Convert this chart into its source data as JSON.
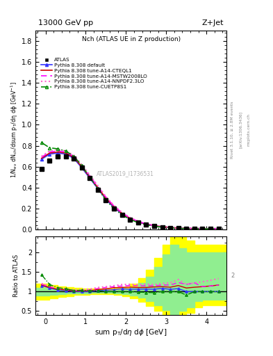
{
  "title_top": "13000 GeV pp",
  "title_right": "Z+Jet",
  "panel_title": "Nch (ATLAS UE in Z production)",
  "watermark": "ATLAS2019_I1736531",
  "atlas_x": [
    -0.1,
    0.1,
    0.3,
    0.5,
    0.7,
    0.9,
    1.1,
    1.3,
    1.5,
    1.7,
    1.9,
    2.1,
    2.3,
    2.5,
    2.7,
    2.9,
    3.1,
    3.3,
    3.5,
    3.7,
    3.9,
    4.1,
    4.3
  ],
  "atlas_y": [
    0.58,
    0.66,
    0.7,
    0.7,
    0.68,
    0.59,
    0.49,
    0.38,
    0.28,
    0.2,
    0.14,
    0.097,
    0.068,
    0.048,
    0.034,
    0.024,
    0.018,
    0.013,
    0.011,
    0.009,
    0.008,
    0.007,
    0.006
  ],
  "pythia_default_x": [
    -0.1,
    0.1,
    0.3,
    0.5,
    0.7,
    0.9,
    1.1,
    1.3,
    1.5,
    1.7,
    1.9,
    2.1,
    2.3,
    2.5,
    2.7,
    2.9,
    3.1,
    3.3,
    3.5,
    3.7,
    3.9,
    4.1,
    4.3
  ],
  "pythia_default_y": [
    0.67,
    0.72,
    0.73,
    0.72,
    0.68,
    0.59,
    0.49,
    0.39,
    0.29,
    0.21,
    0.15,
    0.103,
    0.072,
    0.051,
    0.036,
    0.026,
    0.019,
    0.014,
    0.011,
    0.009,
    0.008,
    0.007,
    0.006
  ],
  "cteql1_x": [
    -0.1,
    0.1,
    0.3,
    0.5,
    0.7,
    0.9,
    1.1,
    1.3,
    1.5,
    1.7,
    1.9,
    2.1,
    2.3,
    2.5,
    2.7,
    2.9,
    3.1,
    3.3,
    3.5,
    3.7,
    3.9,
    4.1,
    4.3
  ],
  "cteql1_y": [
    0.68,
    0.73,
    0.74,
    0.73,
    0.69,
    0.6,
    0.5,
    0.4,
    0.3,
    0.22,
    0.155,
    0.108,
    0.075,
    0.053,
    0.038,
    0.027,
    0.02,
    0.015,
    0.012,
    0.01,
    0.009,
    0.008,
    0.007
  ],
  "mstw_x": [
    -0.1,
    0.1,
    0.3,
    0.5,
    0.7,
    0.9,
    1.1,
    1.3,
    1.5,
    1.7,
    1.9,
    2.1,
    2.3,
    2.5,
    2.7,
    2.9,
    3.1,
    3.3,
    3.5,
    3.7,
    3.9,
    4.1,
    4.3
  ],
  "mstw_y": [
    0.69,
    0.74,
    0.75,
    0.74,
    0.7,
    0.61,
    0.51,
    0.41,
    0.31,
    0.225,
    0.16,
    0.112,
    0.078,
    0.055,
    0.039,
    0.028,
    0.021,
    0.016,
    0.013,
    0.011,
    0.009,
    0.008,
    0.007
  ],
  "nnpdf_x": [
    -0.1,
    0.1,
    0.3,
    0.5,
    0.7,
    0.9,
    1.1,
    1.3,
    1.5,
    1.7,
    1.9,
    2.1,
    2.3,
    2.5,
    2.7,
    2.9,
    3.1,
    3.3,
    3.5,
    3.7,
    3.9,
    4.1,
    4.3
  ],
  "nnpdf_y": [
    0.7,
    0.75,
    0.76,
    0.75,
    0.71,
    0.62,
    0.52,
    0.42,
    0.315,
    0.23,
    0.165,
    0.115,
    0.08,
    0.057,
    0.04,
    0.029,
    0.022,
    0.017,
    0.013,
    0.011,
    0.01,
    0.009,
    0.008
  ],
  "cuetp_x": [
    -0.1,
    0.1,
    0.3,
    0.5,
    0.7,
    0.9,
    1.1,
    1.3,
    1.5,
    1.7,
    1.9,
    2.1,
    2.3,
    2.5,
    2.7,
    2.9,
    3.1,
    3.3,
    3.5,
    3.7,
    3.9,
    4.1,
    4.3
  ],
  "cuetp_y": [
    0.83,
    0.78,
    0.77,
    0.75,
    0.7,
    0.61,
    0.5,
    0.39,
    0.28,
    0.2,
    0.14,
    0.097,
    0.067,
    0.047,
    0.033,
    0.024,
    0.018,
    0.013,
    0.01,
    0.009,
    0.008,
    0.007,
    0.006
  ],
  "ratio_x": [
    -0.1,
    0.1,
    0.3,
    0.5,
    0.7,
    0.9,
    1.1,
    1.3,
    1.5,
    1.7,
    1.9,
    2.1,
    2.3,
    2.5,
    2.7,
    2.9,
    3.1,
    3.3,
    3.5,
    3.7,
    3.9,
    4.1,
    4.3
  ],
  "ratio_default_y": [
    1.155,
    1.091,
    1.043,
    1.029,
    1.0,
    1.0,
    1.0,
    1.026,
    1.036,
    1.05,
    1.071,
    1.062,
    1.059,
    1.063,
    1.059,
    1.083,
    1.056,
    1.077,
    1.0,
    1.0,
    1.0,
    1.0,
    1.0
  ],
  "ratio_cteql1_y": [
    1.172,
    1.106,
    1.057,
    1.043,
    1.015,
    1.017,
    1.02,
    1.053,
    1.071,
    1.1,
    1.107,
    1.113,
    1.103,
    1.104,
    1.118,
    1.125,
    1.111,
    1.154,
    1.091,
    1.111,
    1.125,
    1.143,
    1.167
  ],
  "ratio_mstw_y": [
    1.19,
    1.121,
    1.071,
    1.057,
    1.029,
    1.033,
    1.041,
    1.079,
    1.107,
    1.125,
    1.143,
    1.155,
    1.147,
    1.146,
    1.147,
    1.167,
    1.167,
    1.231,
    1.182,
    1.222,
    1.125,
    1.143,
    1.167
  ],
  "ratio_nnpdf_y": [
    1.207,
    1.136,
    1.086,
    1.071,
    1.044,
    1.051,
    1.061,
    1.105,
    1.125,
    1.15,
    1.179,
    1.186,
    1.176,
    1.188,
    1.176,
    1.208,
    1.222,
    1.308,
    1.182,
    1.222,
    1.25,
    1.286,
    1.333
  ],
  "ratio_cuetp_y": [
    1.431,
    1.182,
    1.1,
    1.071,
    1.029,
    1.034,
    1.02,
    1.026,
    1.0,
    1.0,
    1.0,
    1.0,
    0.985,
    0.979,
    0.971,
    1.0,
    1.0,
    1.0,
    0.909,
    1.0,
    1.0,
    1.0,
    1.0
  ],
  "green_band_x": [
    -0.3,
    -0.1,
    0.1,
    0.3,
    0.5,
    0.7,
    0.9,
    1.1,
    1.3,
    1.5,
    1.7,
    1.9,
    2.1,
    2.3,
    2.5,
    2.7,
    2.9,
    3.1,
    3.3,
    3.5,
    3.7,
    3.9,
    4.1,
    4.3,
    4.5
  ],
  "green_band_lo": [
    0.9,
    0.9,
    0.92,
    0.94,
    0.95,
    0.96,
    0.96,
    0.97,
    0.97,
    0.97,
    0.96,
    0.94,
    0.9,
    0.84,
    0.76,
    0.65,
    0.52,
    0.42,
    0.5,
    0.6,
    0.75,
    0.8,
    0.8,
    0.8,
    0.8
  ],
  "green_band_hi": [
    1.1,
    1.1,
    1.08,
    1.06,
    1.05,
    1.04,
    1.04,
    1.03,
    1.03,
    1.03,
    1.04,
    1.06,
    1.12,
    1.22,
    1.38,
    1.62,
    1.95,
    2.2,
    2.1,
    2.0,
    2.0,
    2.0,
    2.0,
    2.0,
    2.0
  ],
  "yellow_band_x": [
    -0.3,
    -0.1,
    0.1,
    0.3,
    0.5,
    0.7,
    0.9,
    1.1,
    1.3,
    1.5,
    1.7,
    1.9,
    2.1,
    2.3,
    2.5,
    2.7,
    2.9,
    3.1,
    3.3,
    3.5,
    3.7,
    3.9,
    4.1,
    4.3,
    4.5
  ],
  "yellow_band_lo": [
    0.8,
    0.8,
    0.83,
    0.87,
    0.89,
    0.91,
    0.92,
    0.93,
    0.93,
    0.93,
    0.91,
    0.88,
    0.82,
    0.74,
    0.63,
    0.5,
    0.36,
    0.25,
    0.35,
    0.45,
    0.6,
    0.65,
    0.65,
    0.65,
    0.65
  ],
  "yellow_band_hi": [
    1.2,
    1.2,
    1.17,
    1.13,
    1.11,
    1.09,
    1.08,
    1.07,
    1.07,
    1.07,
    1.09,
    1.12,
    1.2,
    1.34,
    1.55,
    1.85,
    2.2,
    2.5,
    2.4,
    2.3,
    2.2,
    2.2,
    2.2,
    2.2,
    2.2
  ],
  "xlim": [
    -0.25,
    4.5
  ],
  "ylim_main": [
    0.0,
    1.9
  ],
  "ylim_ratio": [
    0.4,
    2.4
  ],
  "yticks_main": [
    0.0,
    0.2,
    0.4,
    0.6,
    0.8,
    1.0,
    1.2,
    1.4,
    1.6,
    1.8
  ],
  "yticks_ratio": [
    0.5,
    1.0,
    1.5,
    2.0
  ],
  "color_atlas": "black",
  "color_default": "#3333FF",
  "color_cteql1": "#CC0000",
  "color_mstw": "#FF00FF",
  "color_nnpdf": "#FF66CC",
  "color_cuetp": "#008800",
  "rivet_text": "Rivet 3.1.10, ≥ 2.8M events",
  "arxiv_text": "[arXiv:1306.3436]",
  "mcplots_text": "mcplots.cern.ch"
}
